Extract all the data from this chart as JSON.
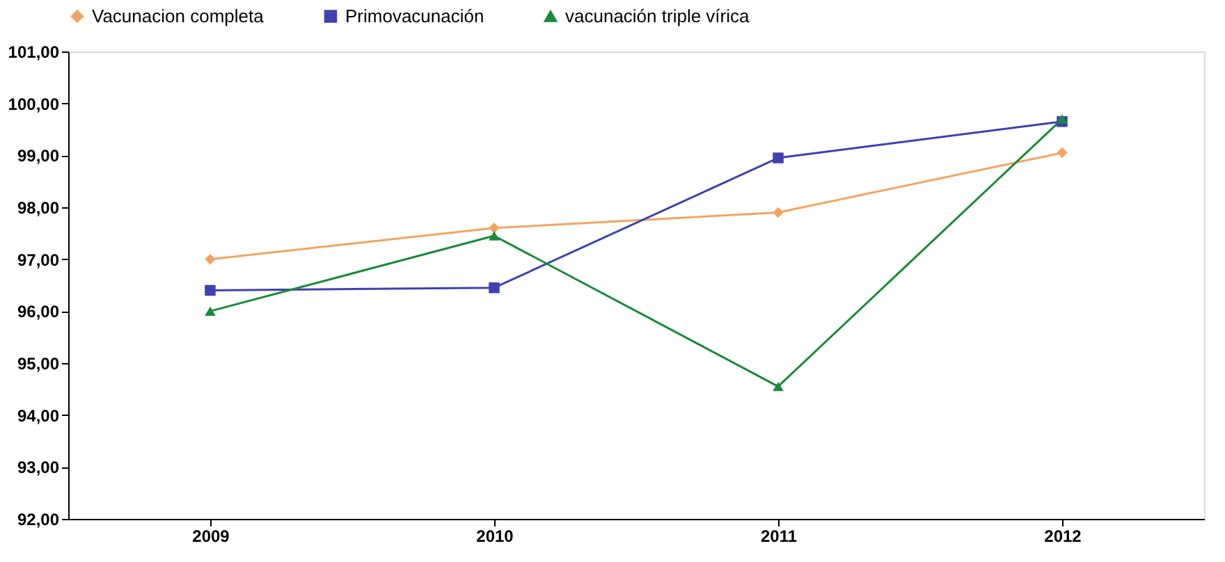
{
  "chart_data": {
    "type": "line",
    "categories": [
      "2009",
      "2010",
      "2011",
      "2012"
    ],
    "series": [
      {
        "name": "Vacunacion completa",
        "color": "#f4a460",
        "marker": "diamond",
        "values": [
          97.0,
          97.6,
          97.9,
          99.05
        ]
      },
      {
        "name": "Primovacunación",
        "color": "#4040b0",
        "marker": "square",
        "values": [
          96.4,
          96.45,
          98.95,
          99.65
        ]
      },
      {
        "name": "vacunación triple vírica",
        "color": "#1a8a3a",
        "marker": "triangle",
        "values": [
          96.0,
          97.45,
          94.55,
          99.7
        ]
      }
    ],
    "ylim": [
      92,
      101
    ],
    "yticks": [
      {
        "value": 92,
        "label": "92,00"
      },
      {
        "value": 93,
        "label": "93,00"
      },
      {
        "value": 94,
        "label": "94,00"
      },
      {
        "value": 95,
        "label": "95,00"
      },
      {
        "value": 96,
        "label": "96,00"
      },
      {
        "value": 97,
        "label": "97,00"
      },
      {
        "value": 98,
        "label": "98,00"
      },
      {
        "value": 99,
        "label": "99,00"
      },
      {
        "value": 100,
        "label": "100,00"
      },
      {
        "value": 101,
        "label": "101,00"
      }
    ],
    "grid": false,
    "legend": "top",
    "line_style": "solid"
  }
}
